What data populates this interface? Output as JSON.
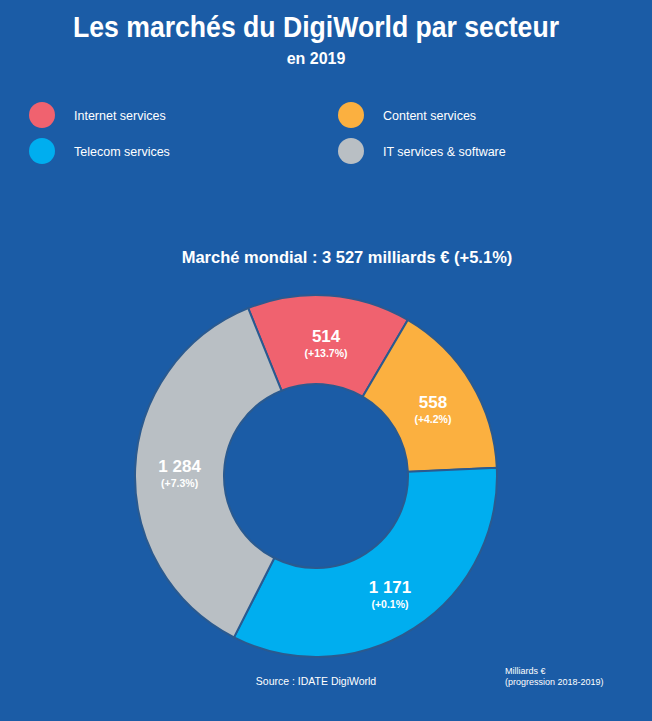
{
  "chart_data": {
    "type": "donut",
    "title": "Les marchés du DigiWorld par secteur",
    "subtitle": "en 2019",
    "total_label": "Marché mondial : 3 527 milliards € (+5.1%)",
    "categories": [
      "Internet services",
      "Content services",
      "Telecom services",
      "IT services & software"
    ],
    "values": [
      514,
      558,
      1171,
      1284
    ],
    "value_labels": [
      "514",
      "558",
      "1 171",
      "1 284"
    ],
    "growth_labels": [
      "(+13.7%)",
      "(+4.2%)",
      "(+0.1%)",
      "(+7.3%)"
    ],
    "colors": [
      "#f0626f",
      "#fbb040",
      "#00aeef",
      "#b9bfc4"
    ],
    "data_labels": true,
    "legend": "top",
    "source": "Source : IDATE DigiWorld",
    "note": [
      "Milliards €",
      "(progression 2018-2019)"
    ]
  }
}
